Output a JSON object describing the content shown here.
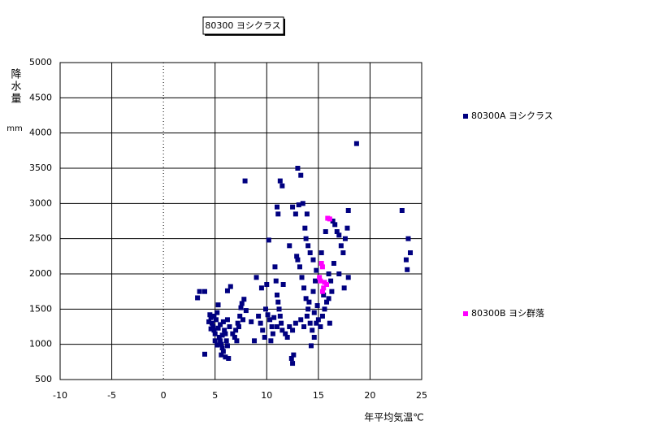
{
  "chart_data": {
    "type": "scatter",
    "title": "80300 ヨシクラス",
    "xlabel": "年平均気温℃",
    "ylabel": "降水量",
    "y_unit": "mm",
    "xlim": [
      -10,
      25
    ],
    "xticks": [
      -10,
      -5,
      0,
      5,
      10,
      15,
      20,
      25
    ],
    "ylim": [
      500,
      5000
    ],
    "yticks": [
      500,
      1000,
      1500,
      2000,
      2500,
      3000,
      3500,
      4000,
      4500,
      5000
    ],
    "grid": true,
    "legend": "right",
    "series": [
      {
        "name": "80300A ヨシクラス",
        "color": "#000080",
        "x": [
          3.5,
          4.0,
          3.3,
          4.0,
          4.5,
          4.6,
          4.7,
          4.8,
          4.9,
          5.0,
          5.1,
          5.2,
          5.3,
          5.4,
          5.5,
          5.6,
          5.7,
          5.8,
          5.6,
          5.9,
          6.0,
          6.1,
          6.2,
          6.3,
          6.0,
          5.5,
          5.3,
          5.8,
          4.9,
          4.4,
          4.6,
          5.0,
          5.2,
          5.7,
          6.4,
          6.2,
          6.5,
          6.2,
          6.7,
          6.9,
          7.0,
          7.2,
          7.4,
          7.5,
          7.6,
          7.8,
          7.3,
          7.1,
          7.7,
          8.0,
          7.9,
          8.5,
          8.8,
          9.0,
          9.5,
          10.0,
          10.2,
          9.2,
          9.4,
          9.6,
          9.8,
          10.1,
          10.3,
          10.5,
          10.6,
          10.4,
          9.9,
          10.7,
          10.8,
          10.9,
          11.0,
          11.1,
          11.2,
          11.3,
          11.4,
          11.5,
          11.6,
          11.8,
          11.0,
          12.0,
          12.2,
          12.5,
          12.8,
          11.3,
          11.5,
          11.0,
          11.1,
          12.2,
          12.5,
          12.8,
          13.0,
          13.3,
          13.1,
          13.5,
          12.4,
          12.6,
          12.5,
          12.9,
          13.0,
          13.2,
          13.4,
          13.6,
          13.8,
          14.0,
          13.3,
          13.6,
          13.9,
          14.2,
          14.4,
          14.6,
          14.3,
          14.1,
          14.5,
          14.7,
          13.7,
          13.8,
          14.0,
          14.2,
          14.5,
          14.8,
          13.9,
          14.6,
          14.9,
          15.0,
          15.2,
          15.4,
          15.6,
          15.8,
          16.0,
          16.1,
          15.5,
          14.8,
          15.3,
          15.7,
          16.0,
          16.2,
          16.4,
          16.6,
          16.8,
          17.0,
          17.2,
          17.4,
          16.5,
          17.0,
          17.6,
          17.8,
          17.9,
          17.5,
          17.9,
          16.3,
          18.7,
          23.1,
          23.7,
          23.9,
          23.5,
          23.6
        ],
        "values": [
          1750,
          1750,
          1660,
          860,
          1420,
          1380,
          1300,
          1250,
          1200,
          1150,
          1350,
          1450,
          1560,
          1100,
          1050,
          1000,
          950,
          900,
          850,
          1200,
          1150,
          1050,
          980,
          800,
          820,
          1280,
          1230,
          1320,
          1400,
          1320,
          1220,
          1050,
          990,
          1130,
          1250,
          1350,
          1820,
          1760,
          1150,
          1100,
          1200,
          1300,
          1400,
          1520,
          1580,
          1640,
          1250,
          1050,
          1350,
          1480,
          3320,
          1320,
          1050,
          1950,
          1800,
          1850,
          2480,
          1400,
          1300,
          1200,
          1100,
          1420,
          1350,
          1250,
          1150,
          1050,
          1500,
          1380,
          2100,
          1900,
          1700,
          1600,
          1500,
          1400,
          1300,
          1200,
          1850,
          1150,
          1250,
          1100,
          1250,
          1200,
          1300,
          3320,
          3250,
          2950,
          2850,
          2400,
          2950,
          2850,
          3500,
          3400,
          2980,
          3000,
          800,
          850,
          730,
          2250,
          2200,
          2100,
          1950,
          1800,
          1650,
          1500,
          1350,
          1250,
          1400,
          1300,
          1200,
          1100,
          980,
          1600,
          1750,
          1900,
          2650,
          2500,
          2400,
          2300,
          2200,
          2050,
          2850,
          1450,
          1550,
          1350,
          1250,
          1400,
          1500,
          1600,
          1650,
          1300,
          1700,
          1300,
          2300,
          2600,
          2000,
          1900,
          2750,
          2700,
          2600,
          2550,
          2400,
          2300,
          2150,
          2000,
          2500,
          2650,
          2900,
          1800,
          1950,
          1750,
          3850,
          2900,
          2500,
          2300,
          2200,
          2060
        ]
      },
      {
        "name": "80300B ヨシ群落",
        "color": "#ff00ff",
        "x": [
          15.9,
          16.1,
          15.3,
          15.4,
          15.2,
          15.6,
          15.5,
          15.1,
          15.8,
          15.4
        ],
        "values": [
          2790,
          2780,
          2150,
          2100,
          1900,
          1880,
          1800,
          1950,
          1850,
          1750
        ]
      }
    ]
  }
}
